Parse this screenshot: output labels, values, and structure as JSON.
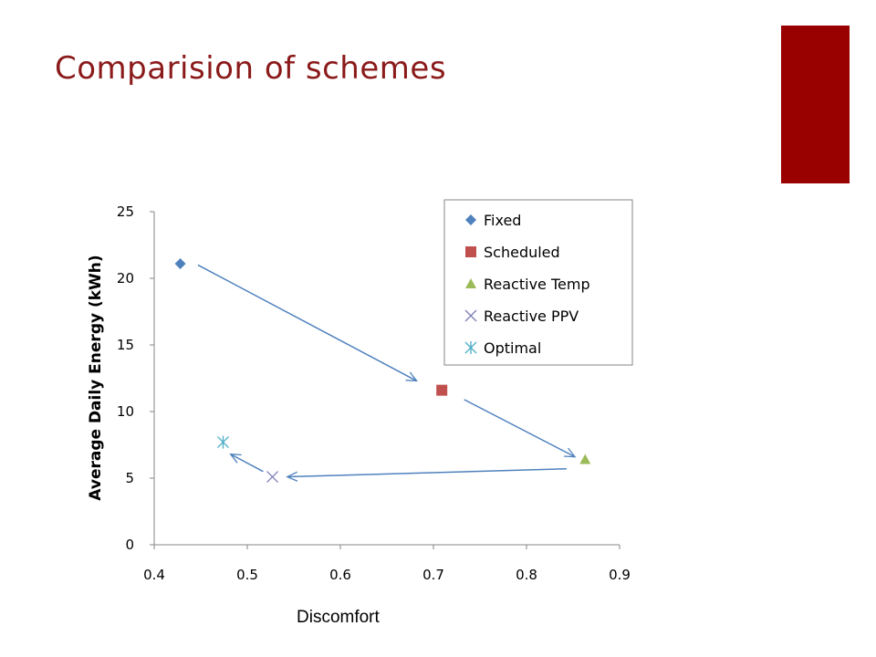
{
  "slide": {
    "title": "Comparision of schemes",
    "accent_color": "#990000"
  },
  "chart_data": {
    "type": "scatter",
    "title": "",
    "xlabel": "Discomfort",
    "ylabel": "Average Daily Energy (kWh)",
    "xlim": [
      0.4,
      0.9
    ],
    "ylim": [
      0,
      25
    ],
    "x_ticks": [
      "0.4",
      "0.5",
      "0.6",
      "0.7",
      "0.8",
      "0.9"
    ],
    "y_ticks": [
      "0",
      "5",
      "10",
      "15",
      "20",
      "25"
    ],
    "grid": false,
    "legend_position": "top-right",
    "series": [
      {
        "name": "Fixed",
        "marker": "diamond",
        "color": "#4f81bd",
        "points": [
          [
            0.428,
            21.1
          ]
        ]
      },
      {
        "name": "Scheduled",
        "marker": "square",
        "color": "#c0504d",
        "points": [
          [
            0.709,
            11.6
          ]
        ]
      },
      {
        "name": "Reactive Temp",
        "marker": "triangle",
        "color": "#9bbb59",
        "points": [
          [
            0.863,
            6.4
          ]
        ]
      },
      {
        "name": "Reactive PPV",
        "marker": "x",
        "color": "#7f7fb8",
        "points": [
          [
            0.527,
            5.1
          ]
        ]
      },
      {
        "name": "Optimal",
        "marker": "asterisk",
        "color": "#4bacc6",
        "points": [
          [
            0.474,
            7.7
          ]
        ]
      }
    ],
    "arrows": [
      {
        "from": [
          0.447,
          21.0
        ],
        "to": [
          0.682,
          12.3
        ]
      },
      {
        "from": [
          0.733,
          10.9
        ],
        "to": [
          0.852,
          6.6
        ]
      },
      {
        "from": [
          0.843,
          5.7
        ],
        "to": [
          0.543,
          5.1
        ]
      },
      {
        "from": [
          0.517,
          5.5
        ],
        "to": [
          0.482,
          6.8
        ]
      }
    ],
    "arrow_color": "#4f81bd"
  }
}
